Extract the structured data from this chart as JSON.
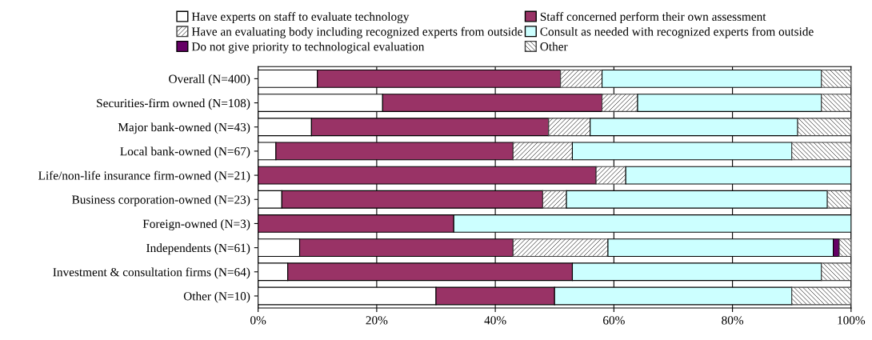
{
  "chart_data": {
    "type": "bar",
    "orientation": "horizontal",
    "stacked": true,
    "categories": [
      "Overall (N=400)",
      "Securities-firm owned (N=108)",
      "Major bank-owned (N=43)",
      "Local bank-owned (N=67)",
      "Life/non-life insurance firm-owned (N=21)",
      "Business corporation-owned (N=23)",
      "Foreign-owned (N=3)",
      "Independents (N=61)",
      "Investment & consultation firms (N=64)",
      "Other (N=10)"
    ],
    "series": [
      {
        "name": "Have experts on staff to evaluate technology",
        "color": "#ffffff",
        "values": [
          10,
          21,
          9,
          3,
          0,
          4,
          0,
          7,
          5,
          30
        ]
      },
      {
        "name": "Staff concerned perform their own assessment",
        "color": "#993366",
        "values": [
          41,
          37,
          40,
          40,
          57,
          44,
          33,
          36,
          48,
          20
        ]
      },
      {
        "name": "Have an evaluating body including recognized experts from outside",
        "color": "#404040",
        "values": [
          7,
          6,
          7,
          10,
          5,
          4,
          0,
          16,
          0,
          0
        ]
      },
      {
        "name": "Consult as needed with recognized experts from outside",
        "color": "#ccffff",
        "values": [
          37,
          31,
          35,
          37,
          38,
          44,
          67,
          38,
          42,
          40
        ]
      },
      {
        "name": "Do not give priority to technological evaluation",
        "color": "#660066",
        "values": [
          0,
          0,
          0,
          0,
          0,
          0,
          0,
          1,
          0,
          0
        ]
      },
      {
        "name": "Other",
        "color": "#404040",
        "values": [
          5,
          5,
          9,
          10,
          0,
          4,
          0,
          2,
          5,
          10
        ]
      }
    ],
    "xlim": [
      0,
      100
    ],
    "xticks": [
      {
        "value": 0,
        "label": "0%"
      },
      {
        "value": 20,
        "label": "20%"
      },
      {
        "value": 40,
        "label": "40%"
      },
      {
        "value": 60,
        "label": "60%"
      },
      {
        "value": 80,
        "label": "80%"
      },
      {
        "value": 100,
        "label": "100%"
      }
    ],
    "grid": "x",
    "legend": "top"
  }
}
